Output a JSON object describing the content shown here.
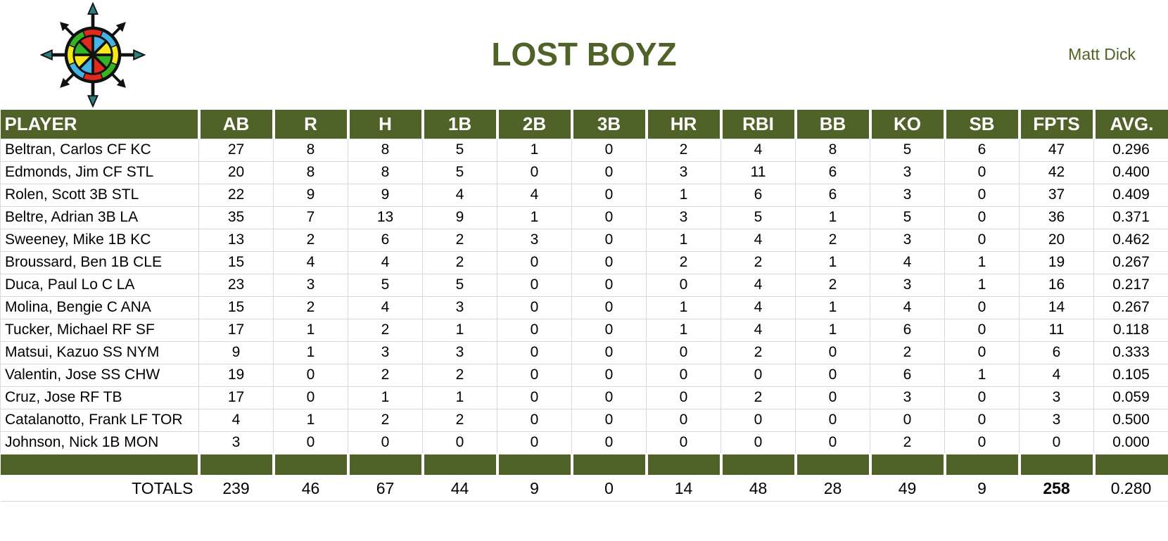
{
  "header": {
    "title": "LOST BOYZ",
    "owner": "Matt Dick"
  },
  "table": {
    "columns": [
      "PLAYER",
      "AB",
      "R",
      "H",
      "1B",
      "2B",
      "3B",
      "HR",
      "RBI",
      "BB",
      "KO",
      "SB",
      "FPTS",
      "AVG."
    ],
    "rows": [
      {
        "player": "Beltran, Carlos CF KC",
        "stats": [
          "27",
          "8",
          "8",
          "5",
          "1",
          "0",
          "2",
          "4",
          "8",
          "5",
          "6",
          "47",
          "0.296"
        ]
      },
      {
        "player": "Edmonds, Jim CF STL",
        "stats": [
          "20",
          "8",
          "8",
          "5",
          "0",
          "0",
          "3",
          "11",
          "6",
          "3",
          "0",
          "42",
          "0.400"
        ]
      },
      {
        "player": "Rolen, Scott 3B STL",
        "stats": [
          "22",
          "9",
          "9",
          "4",
          "4",
          "0",
          "1",
          "6",
          "6",
          "3",
          "0",
          "37",
          "0.409"
        ]
      },
      {
        "player": "Beltre, Adrian 3B LA",
        "stats": [
          "35",
          "7",
          "13",
          "9",
          "1",
          "0",
          "3",
          "5",
          "1",
          "5",
          "0",
          "36",
          "0.371"
        ]
      },
      {
        "player": "Sweeney, Mike 1B KC",
        "stats": [
          "13",
          "2",
          "6",
          "2",
          "3",
          "0",
          "1",
          "4",
          "2",
          "3",
          "0",
          "20",
          "0.462"
        ]
      },
      {
        "player": "Broussard, Ben 1B CLE",
        "stats": [
          "15",
          "4",
          "4",
          "2",
          "0",
          "0",
          "2",
          "2",
          "1",
          "4",
          "1",
          "19",
          "0.267"
        ]
      },
      {
        "player": "Duca, Paul Lo C LA",
        "stats": [
          "23",
          "3",
          "5",
          "5",
          "0",
          "0",
          "0",
          "4",
          "2",
          "3",
          "1",
          "16",
          "0.217"
        ]
      },
      {
        "player": "Molina, Bengie C ANA",
        "stats": [
          "15",
          "2",
          "4",
          "3",
          "0",
          "0",
          "1",
          "4",
          "1",
          "4",
          "0",
          "14",
          "0.267"
        ]
      },
      {
        "player": "Tucker, Michael RF SF",
        "stats": [
          "17",
          "1",
          "2",
          "1",
          "0",
          "0",
          "1",
          "4",
          "1",
          "6",
          "0",
          "11",
          "0.118"
        ]
      },
      {
        "player": "Matsui, Kazuo SS NYM",
        "stats": [
          "9",
          "1",
          "3",
          "3",
          "0",
          "0",
          "0",
          "2",
          "0",
          "2",
          "0",
          "6",
          "0.333"
        ]
      },
      {
        "player": "Valentin, Jose SS CHW",
        "stats": [
          "19",
          "0",
          "2",
          "2",
          "0",
          "0",
          "0",
          "0",
          "0",
          "6",
          "1",
          "4",
          "0.105"
        ]
      },
      {
        "player": "Cruz, Jose RF TB",
        "stats": [
          "17",
          "0",
          "1",
          "1",
          "0",
          "0",
          "0",
          "2",
          "0",
          "3",
          "0",
          "3",
          "0.059"
        ]
      },
      {
        "player": "Catalanotto, Frank LF TOR",
        "stats": [
          "4",
          "1",
          "2",
          "2",
          "0",
          "0",
          "0",
          "0",
          "0",
          "0",
          "0",
          "3",
          "0.500"
        ]
      },
      {
        "player": "Johnson, Nick 1B MON",
        "stats": [
          "3",
          "0",
          "0",
          "0",
          "0",
          "0",
          "0",
          "0",
          "0",
          "2",
          "0",
          "0",
          "0.000"
        ]
      }
    ],
    "totals": {
      "label": "TOTALS",
      "stats": [
        "239",
        "46",
        "67",
        "44",
        "9",
        "0",
        "14",
        "48",
        "28",
        "49",
        "9",
        "258",
        "0.280"
      ],
      "bold_column": "FPTS"
    }
  },
  "logo": {
    "name": "compass-logo",
    "colors": {
      "red": "#e02a1d",
      "blue": "#45b4e4",
      "green": "#35b424",
      "yellow": "#f5e71c",
      "teal": "#2a8080",
      "outline": "#111111"
    }
  },
  "colors": {
    "accent_green": "#4f6228",
    "grid_line": "#d9d9d9",
    "text": "#000000"
  }
}
